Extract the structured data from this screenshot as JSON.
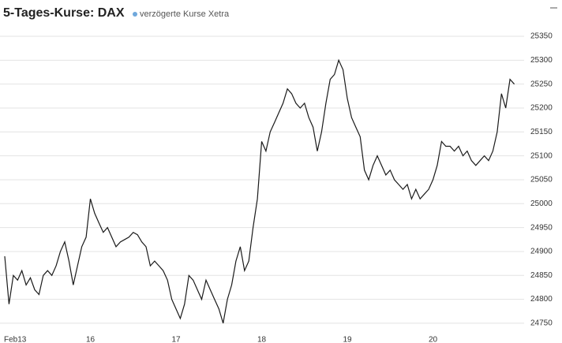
{
  "chart_data": {
    "type": "line",
    "title": "5-Tages-Kurse: DAX",
    "subtitle": "verzögerte Kurse Xetra",
    "categories": [
      "Feb13",
      null,
      null,
      null,
      null,
      null,
      null,
      null,
      null,
      null,
      null,
      null,
      null,
      null,
      null,
      null,
      null,
      null,
      null,
      null,
      "16",
      null,
      null,
      null,
      null,
      null,
      null,
      null,
      null,
      null,
      null,
      null,
      null,
      null,
      null,
      null,
      null,
      null,
      null,
      null,
      "17",
      null,
      null,
      null,
      null,
      null,
      null,
      null,
      null,
      null,
      null,
      null,
      null,
      null,
      null,
      null,
      null,
      null,
      null,
      null,
      "18",
      null,
      null,
      null,
      null,
      null,
      null,
      null,
      null,
      null,
      null,
      null,
      null,
      null,
      null,
      null,
      null,
      null,
      null,
      null,
      "19",
      null,
      null,
      null,
      null,
      null,
      null,
      null,
      null,
      null,
      null,
      null,
      null,
      null,
      null,
      null,
      null,
      null,
      null,
      null,
      "20",
      null,
      null,
      null,
      null,
      null,
      null,
      null,
      null,
      null,
      null,
      null,
      null,
      null,
      null,
      null,
      null,
      null,
      null,
      null
    ],
    "values": [
      24890,
      24790,
      24850,
      24840,
      24860,
      24830,
      24845,
      24820,
      24810,
      24850,
      24860,
      24850,
      24870,
      24900,
      24920,
      24880,
      24830,
      24870,
      24910,
      24930,
      25010,
      24980,
      24960,
      24940,
      24950,
      24930,
      24910,
      24920,
      24925,
      24930,
      24940,
      24935,
      24920,
      24910,
      24870,
      24880,
      24870,
      24860,
      24840,
      24800,
      24780,
      24760,
      24790,
      24850,
      24840,
      24820,
      24800,
      24840,
      24820,
      24800,
      24780,
      24750,
      24800,
      24830,
      24880,
      24910,
      24860,
      24880,
      24950,
      25010,
      25130,
      25110,
      25150,
      25170,
      25190,
      25210,
      25240,
      25230,
      25210,
      25200,
      25210,
      25180,
      25160,
      25110,
      25150,
      25210,
      25260,
      25270,
      25300,
      25280,
      25220,
      25180,
      25160,
      25140,
      25070,
      25050,
      25080,
      25100,
      25080,
      25060,
      25070,
      25050,
      25040,
      25030,
      25040,
      25010,
      25030,
      25010,
      25020,
      25030,
      25050,
      25080,
      25130,
      25120,
      25120,
      25110,
      25120,
      25100,
      25110,
      25090,
      25080,
      25090,
      25100,
      25090,
      25110,
      25150,
      25230,
      25200,
      25260,
      25250
    ],
    "color": "#1a1a1a",
    "subtitle_color": "#6fa8dc",
    "ylim": [
      24740,
      25410
    ],
    "yticks": [
      24750,
      24800,
      24850,
      24900,
      24950,
      25000,
      25050,
      25100,
      25150,
      25200,
      25250,
      25300,
      25350
    ],
    "grid": true
  }
}
